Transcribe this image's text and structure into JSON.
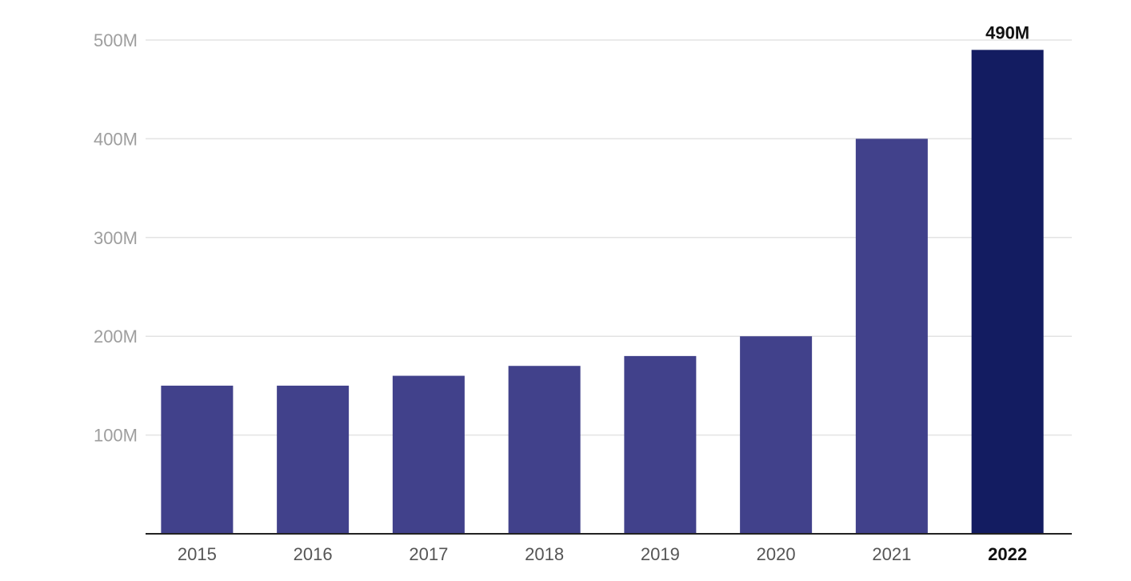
{
  "chart_data": {
    "type": "bar",
    "categories": [
      "2015",
      "2016",
      "2017",
      "2018",
      "2019",
      "2020",
      "2021",
      "2022"
    ],
    "values": [
      150000000,
      150000000,
      160000000,
      170000000,
      180000000,
      200000000,
      400000000,
      490000000
    ],
    "y_ticks": [
      {
        "value": 100000000,
        "label": "100M"
      },
      {
        "value": 200000000,
        "label": "200M"
      },
      {
        "value": 300000000,
        "label": "300M"
      },
      {
        "value": 400000000,
        "label": "400M"
      },
      {
        "value": 500000000,
        "label": "500M"
      }
    ],
    "ylim": [
      0,
      500000000
    ],
    "grid": true,
    "highlight_category": "2022",
    "data_labels": [
      {
        "category": "2022",
        "label": "490M"
      }
    ],
    "colors": {
      "bar": "#41418b",
      "highlight_bar": "#131c61",
      "grid": "#e3e3e3",
      "axis": "#222222"
    }
  }
}
